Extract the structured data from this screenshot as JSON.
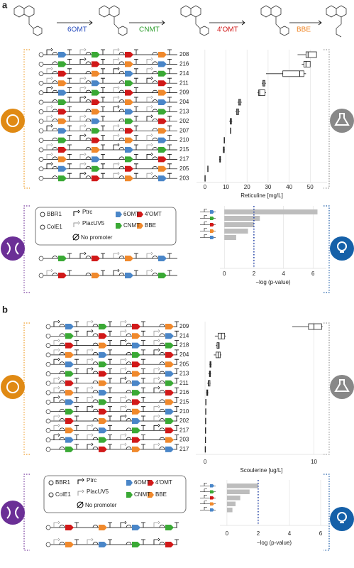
{
  "figure": {
    "panel_labels": [
      "a",
      "b"
    ],
    "enzymes": [
      "6OMT",
      "CNMT",
      "4'OMT",
      "BBE"
    ],
    "legend": {
      "origins": [
        "BBR1",
        "ColE1"
      ],
      "promoters": [
        "Ptrc",
        "PlacUV5",
        "No promoter"
      ],
      "genes": [
        "6OMT",
        "4'OMT",
        "CNMT",
        "BBE"
      ]
    }
  },
  "chart_data": [
    {
      "type": "box",
      "xlabel": "Reticuline [mg/L]",
      "categories": [
        "208",
        "216",
        "214",
        "211",
        "209",
        "204",
        "213",
        "202",
        "207",
        "210",
        "215",
        "217",
        "205",
        "203"
      ],
      "values": [
        [
          44,
          48,
          49,
          53,
          53
        ],
        [
          46,
          47,
          48,
          50,
          50
        ],
        [
          29,
          37,
          45,
          47,
          48
        ],
        [
          27,
          27.5,
          28,
          28.5,
          29
        ],
        [
          25,
          25.5,
          26,
          28.5,
          29
        ],
        [
          15.5,
          16,
          16.5,
          17,
          17.5
        ],
        [
          14.5,
          15,
          15.5,
          16,
          16.5
        ],
        [
          11.5,
          12,
          12.3,
          12.6,
          13
        ],
        [
          12,
          12.1,
          12.2,
          12.3,
          12.4
        ],
        [
          9,
          9.1,
          9.2,
          9.3,
          9.4
        ],
        [
          8.5,
          8.7,
          8.9,
          9.2,
          9.4
        ],
        [
          6.8,
          7,
          7.2,
          7.4,
          7.6
        ],
        [
          1.2,
          1.3,
          1.4,
          1.5,
          1.6
        ],
        [
          0,
          0,
          0,
          0,
          0
        ]
      ],
      "xlim": [
        -4,
        58
      ],
      "xticks": [
        0,
        10,
        20,
        30,
        40,
        50
      ],
      "grid": true
    },
    {
      "type": "bar",
      "xlabel": "−log (p-value)",
      "values": [
        6.3,
        2.4,
        2.0,
        1.6,
        0.8
      ],
      "color": "#bdbdbd",
      "xlim": [
        -0.3,
        6.9
      ],
      "xticks": [
        0,
        2,
        4,
        6
      ],
      "threshold": 2,
      "threshold_color": "#1f3fa8",
      "grid": true
    },
    {
      "type": "box",
      "xlabel": "Scoulerine [ug/L]",
      "categories": [
        "209",
        "214",
        "218",
        "204",
        "205",
        "213",
        "211",
        "216",
        "215",
        "210",
        "202",
        "217",
        "203",
        "217"
      ],
      "values": [
        [
          8,
          9.5,
          10,
          10.7,
          10.8
        ],
        [
          0.9,
          1.2,
          1.5,
          1.8,
          1.9
        ],
        [
          1.0,
          1.1,
          1.2,
          1.3,
          1.3
        ],
        [
          0.8,
          1.0,
          1.2,
          1.4,
          1.5
        ],
        [
          0.4,
          0.45,
          0.5,
          0.55,
          0.6
        ],
        [
          0.3,
          0.4,
          0.45,
          0.5,
          0.55
        ],
        [
          0.2,
          0.3,
          0.35,
          0.45,
          0.5
        ],
        [
          0.1,
          0.15,
          0.2,
          0.25,
          0.3
        ],
        [
          0.05,
          0.06,
          0.07,
          0.08,
          0.09
        ],
        [
          0.04,
          0.05,
          0.06,
          0.07,
          0.08
        ],
        [
          0.03,
          0.04,
          0.05,
          0.06,
          0.07
        ],
        [
          0.02,
          0.03,
          0.04,
          0.05,
          0.06
        ],
        [
          0.01,
          0.02,
          0.03,
          0.04,
          0.05
        ],
        [
          0,
          0.01,
          0.02,
          0.03,
          0.04
        ]
      ],
      "xlim": [
        -0.85,
        11.2
      ],
      "xticks": [
        0,
        10
      ],
      "grid": true
    },
    {
      "type": "bar",
      "xlabel": "−log (p-value)",
      "values": [
        2.0,
        1.45,
        0.85,
        0.55,
        0.35
      ],
      "color": "#bdbdbd",
      "xlim": [
        -0.45,
        6.5
      ],
      "xticks": [
        0,
        2,
        4,
        6
      ],
      "threshold": 2,
      "threshold_color": "#1f3fa8",
      "grid": true
    }
  ]
}
